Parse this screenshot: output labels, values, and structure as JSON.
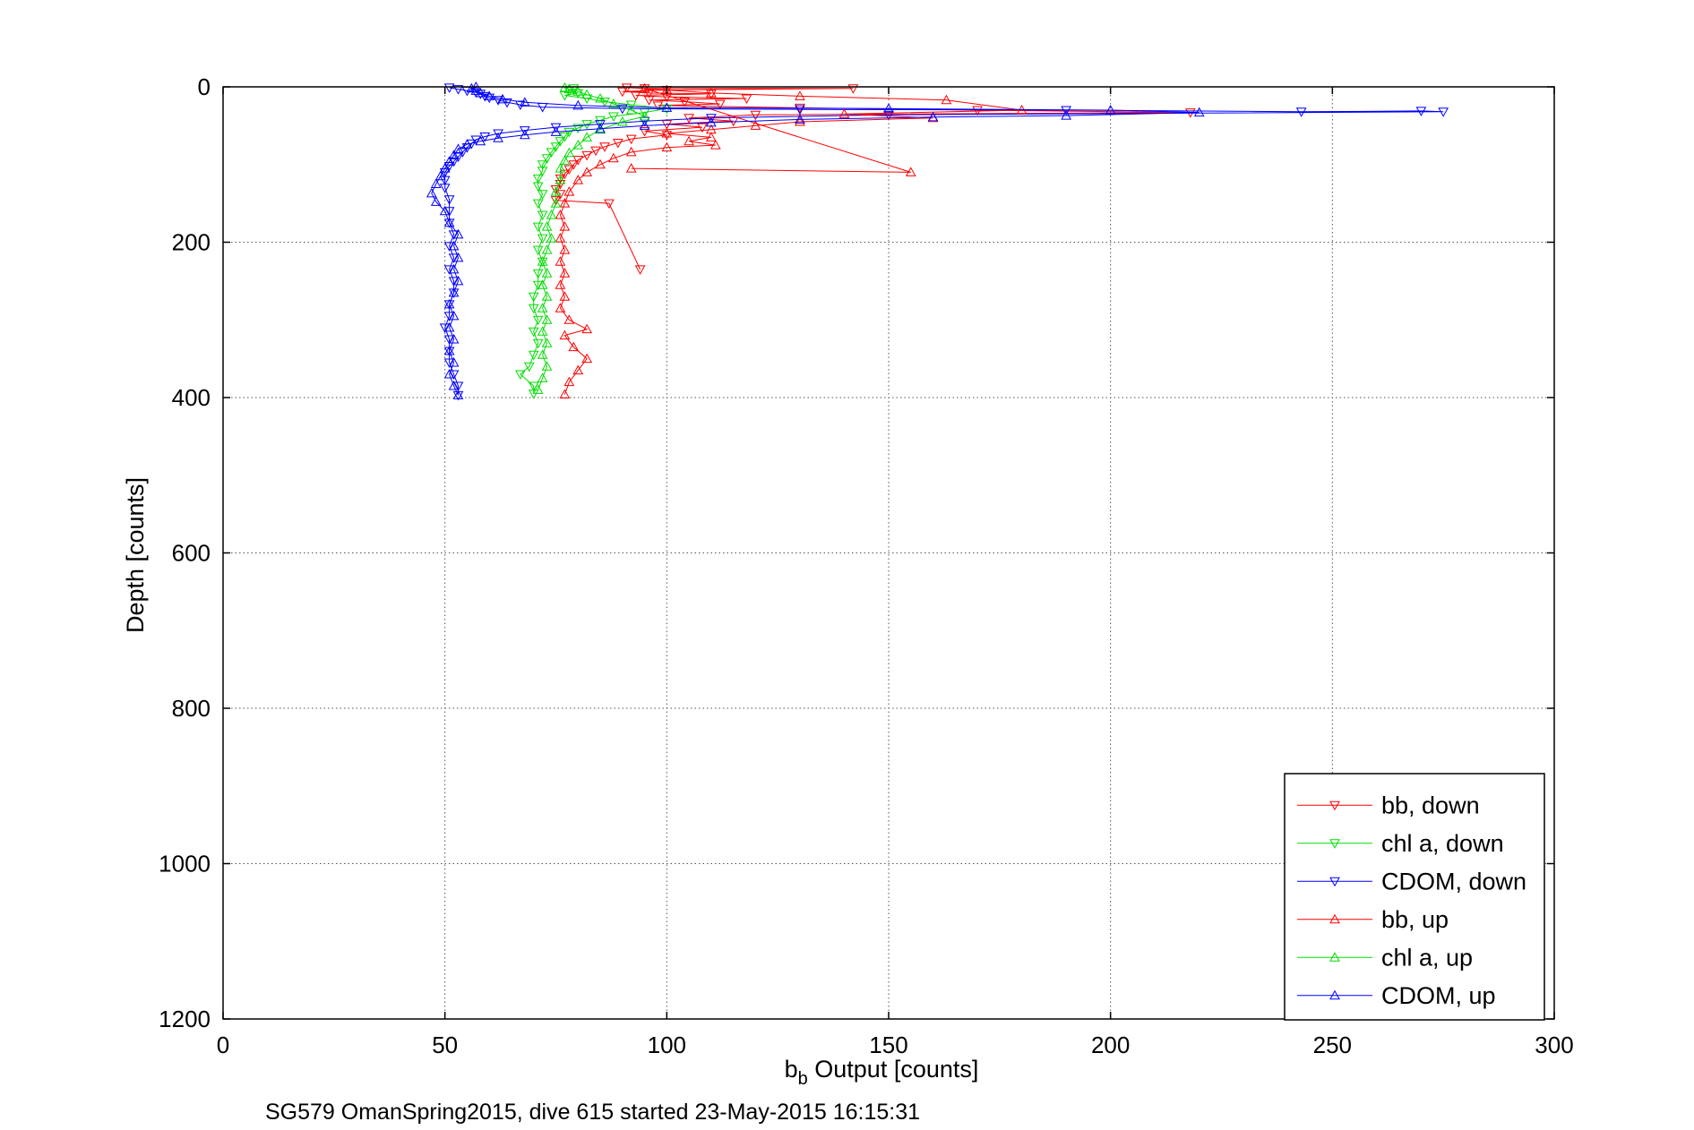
{
  "chart_data": {
    "type": "line",
    "title": "",
    "xlabel_main": "b",
    "xlabel_sub": "b",
    "xlabel_rest": " Output [counts]",
    "ylabel": "Depth [counts]",
    "xlim": [
      0,
      300
    ],
    "ylim": [
      0,
      1200
    ],
    "y_reversed": true,
    "grid": true,
    "legend_position": "bottom-right",
    "x_ticks": [
      "0",
      "50",
      "100",
      "150",
      "200",
      "250",
      "300"
    ],
    "y_ticks": [
      "0",
      "200",
      "400",
      "600",
      "800",
      "1000",
      "1200"
    ],
    "footer": "SG579 OmanSpring2015, dive 615 started 23-May-2015 16:15:31",
    "series": [
      {
        "name": "bb, down",
        "color": "#ff0000",
        "marker": "triangle-down",
        "points": [
          [
            91,
            1
          ],
          [
            95,
            2
          ],
          [
            142,
            2
          ],
          [
            100,
            4
          ],
          [
            90,
            6
          ],
          [
            96,
            8
          ],
          [
            110,
            9
          ],
          [
            93,
            11
          ],
          [
            100,
            13
          ],
          [
            118,
            15
          ],
          [
            96,
            17
          ],
          [
            104,
            19
          ],
          [
            112,
            22
          ],
          [
            98,
            24
          ],
          [
            130,
            27
          ],
          [
            170,
            30
          ],
          [
            218,
            33
          ],
          [
            120,
            36
          ],
          [
            105,
            40
          ],
          [
            115,
            44
          ],
          [
            100,
            48
          ],
          [
            108,
            52
          ],
          [
            95,
            57
          ],
          [
            100,
            62
          ],
          [
            92,
            67
          ],
          [
            89,
            72
          ],
          [
            86,
            77
          ],
          [
            84,
            82
          ],
          [
            82,
            88
          ],
          [
            80,
            94
          ],
          [
            79,
            100
          ],
          [
            78,
            106
          ],
          [
            77,
            112
          ],
          [
            76,
            118
          ],
          [
            76,
            125
          ],
          [
            75,
            132
          ],
          [
            76,
            138
          ],
          [
            75,
            146
          ],
          [
            87,
            150
          ],
          [
            94,
            235
          ]
        ]
      },
      {
        "name": "chl a, down",
        "color": "#00dd00",
        "marker": "triangle-down",
        "points": [
          [
            79,
            2
          ],
          [
            78,
            5
          ],
          [
            80,
            8
          ],
          [
            77,
            11
          ],
          [
            82,
            15
          ],
          [
            86,
            19
          ],
          [
            92,
            23
          ],
          [
            100,
            28
          ],
          [
            95,
            33
          ],
          [
            88,
            38
          ],
          [
            85,
            43
          ],
          [
            82,
            48
          ],
          [
            80,
            53
          ],
          [
            78,
            58
          ],
          [
            77,
            64
          ],
          [
            76,
            70
          ],
          [
            75,
            77
          ],
          [
            74,
            84
          ],
          [
            73,
            92
          ],
          [
            72,
            100
          ],
          [
            72,
            108
          ],
          [
            71,
            118
          ],
          [
            71,
            128
          ],
          [
            72,
            138
          ],
          [
            71,
            150
          ],
          [
            72,
            165
          ],
          [
            71,
            180
          ],
          [
            72,
            195
          ],
          [
            71,
            210
          ],
          [
            72,
            225
          ],
          [
            71,
            240
          ],
          [
            71,
            255
          ],
          [
            70,
            270
          ],
          [
            70,
            285
          ],
          [
            71,
            300
          ],
          [
            70,
            315
          ],
          [
            71,
            330
          ],
          [
            70,
            345
          ],
          [
            69,
            360
          ],
          [
            67,
            370
          ],
          [
            70,
            385
          ],
          [
            70,
            395
          ]
        ]
      },
      {
        "name": "CDOM, down",
        "color": "#0000ff",
        "marker": "triangle-down",
        "points": [
          [
            51,
            1
          ],
          [
            53,
            3
          ],
          [
            55,
            5
          ],
          [
            57,
            7
          ],
          [
            58,
            9
          ],
          [
            59,
            12
          ],
          [
            60,
            14
          ],
          [
            62,
            17
          ],
          [
            64,
            20
          ],
          [
            67,
            23
          ],
          [
            72,
            26
          ],
          [
            90,
            28
          ],
          [
            130,
            29
          ],
          [
            190,
            30
          ],
          [
            243,
            32
          ],
          [
            270,
            31
          ],
          [
            275,
            32
          ],
          [
            150,
            36
          ],
          [
            110,
            40
          ],
          [
            95,
            44
          ],
          [
            85,
            48
          ],
          [
            75,
            52
          ],
          [
            68,
            56
          ],
          [
            62,
            60
          ],
          [
            59,
            64
          ],
          [
            57,
            68
          ],
          [
            56,
            73
          ],
          [
            55,
            78
          ],
          [
            54,
            84
          ],
          [
            53,
            90
          ],
          [
            52,
            96
          ],
          [
            51,
            102
          ],
          [
            50,
            110
          ],
          [
            50,
            120
          ],
          [
            50,
            130
          ],
          [
            51,
            145
          ],
          [
            51,
            160
          ],
          [
            51,
            175
          ],
          [
            52,
            190
          ],
          [
            51,
            205
          ],
          [
            52,
            220
          ],
          [
            51,
            235
          ],
          [
            52,
            250
          ],
          [
            52,
            265
          ],
          [
            51,
            280
          ],
          [
            51,
            295
          ],
          [
            50,
            310
          ],
          [
            51,
            325
          ],
          [
            51,
            340
          ],
          [
            51,
            355
          ],
          [
            52,
            370
          ],
          [
            53,
            385
          ],
          [
            53,
            397
          ]
        ]
      },
      {
        "name": "bb, up",
        "color": "#ff0000",
        "marker": "triangle-up",
        "points": [
          [
            77,
            396
          ],
          [
            78,
            380
          ],
          [
            80,
            365
          ],
          [
            82,
            350
          ],
          [
            79,
            335
          ],
          [
            77,
            320
          ],
          [
            82,
            312
          ],
          [
            78,
            300
          ],
          [
            76,
            285
          ],
          [
            77,
            270
          ],
          [
            76,
            255
          ],
          [
            77,
            240
          ],
          [
            76,
            225
          ],
          [
            77,
            210
          ],
          [
            76,
            195
          ],
          [
            77,
            180
          ],
          [
            76,
            165
          ],
          [
            77,
            150
          ],
          [
            78,
            135
          ],
          [
            80,
            120
          ],
          [
            82,
            110
          ],
          [
            85,
            100
          ],
          [
            88,
            92
          ],
          [
            92,
            84
          ],
          [
            100,
            78
          ],
          [
            111,
            75
          ],
          [
            105,
            70
          ],
          [
            110,
            65
          ],
          [
            100,
            60
          ],
          [
            110,
            55
          ],
          [
            120,
            50
          ],
          [
            130,
            45
          ],
          [
            160,
            40
          ],
          [
            140,
            35
          ],
          [
            180,
            30
          ],
          [
            163,
            17
          ],
          [
            130,
            12
          ],
          [
            110,
            8
          ],
          [
            100,
            4
          ],
          [
            95,
            2
          ],
          [
            155,
            110
          ],
          [
            92,
            105
          ]
        ]
      },
      {
        "name": "chl a, up",
        "color": "#00dd00",
        "marker": "triangle-up",
        "points": [
          [
            71,
            390
          ],
          [
            72,
            375
          ],
          [
            73,
            360
          ],
          [
            72,
            345
          ],
          [
            73,
            330
          ],
          [
            72,
            315
          ],
          [
            73,
            300
          ],
          [
            72,
            285
          ],
          [
            73,
            270
          ],
          [
            72,
            255
          ],
          [
            73,
            240
          ],
          [
            72,
            225
          ],
          [
            73,
            210
          ],
          [
            74,
            195
          ],
          [
            73,
            180
          ],
          [
            74,
            165
          ],
          [
            75,
            150
          ],
          [
            75,
            135
          ],
          [
            76,
            120
          ],
          [
            76,
            105
          ],
          [
            77,
            95
          ],
          [
            78,
            85
          ],
          [
            80,
            75
          ],
          [
            82,
            65
          ],
          [
            85,
            55
          ],
          [
            90,
            45
          ],
          [
            95,
            38
          ],
          [
            92,
            30
          ],
          [
            88,
            22
          ],
          [
            85,
            15
          ],
          [
            82,
            10
          ],
          [
            80,
            6
          ],
          [
            78,
            3
          ],
          [
            77,
            1
          ]
        ]
      },
      {
        "name": "CDOM, up",
        "color": "#0000ff",
        "marker": "triangle-up",
        "points": [
          [
            53,
            397
          ],
          [
            52,
            385
          ],
          [
            51,
            370
          ],
          [
            52,
            355
          ],
          [
            51,
            340
          ],
          [
            52,
            325
          ],
          [
            51,
            310
          ],
          [
            52,
            295
          ],
          [
            51,
            280
          ],
          [
            52,
            265
          ],
          [
            53,
            250
          ],
          [
            52,
            235
          ],
          [
            53,
            220
          ],
          [
            52,
            205
          ],
          [
            53,
            190
          ],
          [
            51,
            175
          ],
          [
            50,
            160
          ],
          [
            48,
            148
          ],
          [
            47,
            137
          ],
          [
            48,
            125
          ],
          [
            49,
            115
          ],
          [
            50,
            105
          ],
          [
            51,
            96
          ],
          [
            52,
            88
          ],
          [
            53,
            80
          ],
          [
            55,
            74
          ],
          [
            58,
            70
          ],
          [
            62,
            66
          ],
          [
            68,
            62
          ],
          [
            75,
            58
          ],
          [
            85,
            54
          ],
          [
            95,
            50
          ],
          [
            110,
            46
          ],
          [
            130,
            42
          ],
          [
            160,
            39
          ],
          [
            190,
            37
          ],
          [
            220,
            33
          ],
          [
            200,
            30
          ],
          [
            150,
            28
          ],
          [
            100,
            27
          ],
          [
            80,
            24
          ],
          [
            68,
            20
          ],
          [
            63,
            16
          ],
          [
            60,
            12
          ],
          [
            58,
            8
          ],
          [
            57,
            5
          ],
          [
            56,
            2
          ],
          [
            57,
            0
          ]
        ]
      }
    ]
  }
}
